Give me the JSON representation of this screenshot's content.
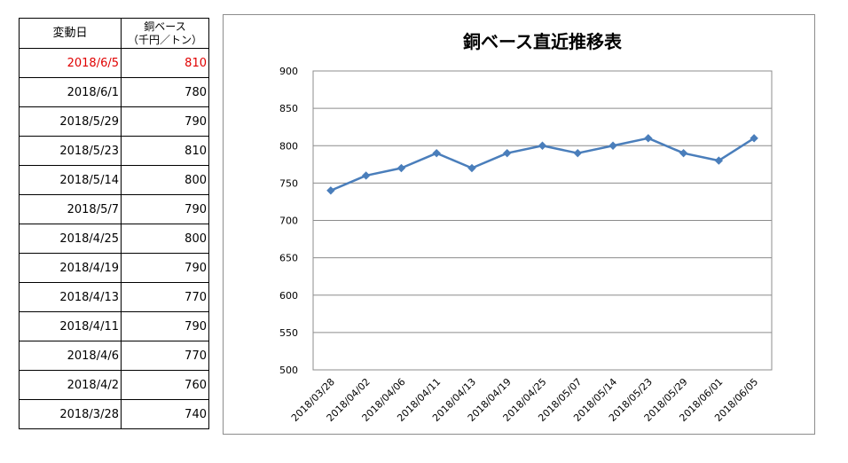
{
  "table": {
    "header_date": "変動日",
    "header_value_line1": "銅ベース",
    "header_value_line2": "（千円／トン）",
    "rows": [
      {
        "date": "2018/6/5",
        "value": "810"
      },
      {
        "date": "2018/6/1",
        "value": "780"
      },
      {
        "date": "2018/5/29",
        "value": "790"
      },
      {
        "date": "2018/5/23",
        "value": "810"
      },
      {
        "date": "2018/5/14",
        "value": "800"
      },
      {
        "date": "2018/5/7",
        "value": "790"
      },
      {
        "date": "2018/4/25",
        "value": "800"
      },
      {
        "date": "2018/4/19",
        "value": "790"
      },
      {
        "date": "2018/4/13",
        "value": "770"
      },
      {
        "date": "2018/4/11",
        "value": "790"
      },
      {
        "date": "2018/4/6",
        "value": "770"
      },
      {
        "date": "2018/4/2",
        "value": "760"
      },
      {
        "date": "2018/3/28",
        "value": "740"
      }
    ],
    "highlight_color": "#e00000"
  },
  "chart_data": {
    "type": "line",
    "title": "銅ベース直近推移表",
    "xlabel": "",
    "ylabel": "",
    "categories": [
      "2018/03/28",
      "2018/04/02",
      "2018/04/06",
      "2018/04/11",
      "2018/04/13",
      "2018/04/19",
      "2018/04/25",
      "2018/05/07",
      "2018/05/14",
      "2018/05/23",
      "2018/05/29",
      "2018/06/01",
      "2018/06/05"
    ],
    "series": [
      {
        "values": [
          740,
          760,
          770,
          790,
          770,
          790,
          800,
          790,
          800,
          810,
          790,
          780,
          810
        ],
        "color": "#4a7ebb"
      }
    ],
    "ylim": [
      500,
      900
    ],
    "yticks": [
      500,
      550,
      600,
      650,
      700,
      750,
      800,
      850,
      900
    ],
    "grid": true,
    "legend": "none"
  }
}
